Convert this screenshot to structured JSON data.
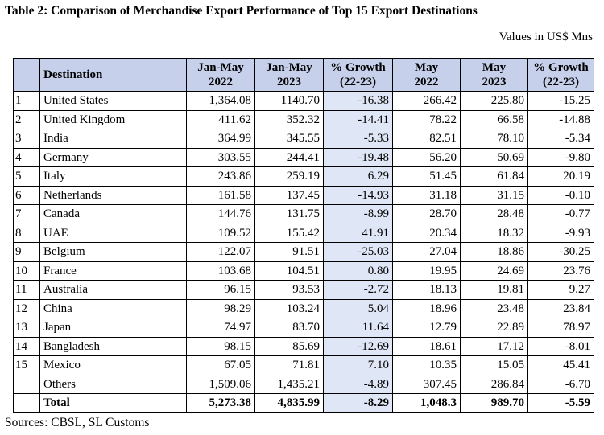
{
  "title": "Table 2: Comparison of Merchandise Export Performance of Top 15 Export Destinations",
  "units": "Values in US$ Mns",
  "headers": {
    "idx": "",
    "destination": "Destination",
    "jan_may_2022_l1": "Jan-May",
    "jan_may_2022_l2": "2022",
    "jan_may_2023_l1": "Jan-May",
    "jan_may_2023_l2": "2023",
    "growth1_l1": "% Growth",
    "growth1_l2": "(22-23)",
    "may_2022_l1": "May",
    "may_2022_l2": "2022",
    "may_2023_l1": "May",
    "may_2023_l2": "2023",
    "growth2_l1": "% Growth",
    "growth2_l2": "(22-23)"
  },
  "rows": [
    {
      "idx": "1",
      "destination": "United States",
      "jm22": "1,364.08",
      "jm23": "1140.70",
      "g1": "-16.38",
      "m22": "266.42",
      "m23": "225.80",
      "g2": "-15.25"
    },
    {
      "idx": "2",
      "destination": "United Kingdom",
      "jm22": "411.62",
      "jm23": "352.32",
      "g1": "-14.41",
      "m22": "78.22",
      "m23": "66.58",
      "g2": "-14.88"
    },
    {
      "idx": "3",
      "destination": "India",
      "jm22": "364.99",
      "jm23": "345.55",
      "g1": "-5.33",
      "m22": "82.51",
      "m23": "78.10",
      "g2": "-5.34"
    },
    {
      "idx": "4",
      "destination": "Germany",
      "jm22": "303.55",
      "jm23": "244.41",
      "g1": "-19.48",
      "m22": "56.20",
      "m23": "50.69",
      "g2": "-9.80"
    },
    {
      "idx": "5",
      "destination": "Italy",
      "jm22": "243.86",
      "jm23": "259.19",
      "g1": "6.29",
      "m22": "51.45",
      "m23": "61.84",
      "g2": "20.19"
    },
    {
      "idx": "6",
      "destination": "Netherlands",
      "jm22": "161.58",
      "jm23": "137.45",
      "g1": "-14.93",
      "m22": "31.18",
      "m23": "31.15",
      "g2": "-0.10"
    },
    {
      "idx": "7",
      "destination": "Canada",
      "jm22": "144.76",
      "jm23": "131.75",
      "g1": "-8.99",
      "m22": "28.70",
      "m23": "28.48",
      "g2": "-0.77"
    },
    {
      "idx": "8",
      "destination": "UAE",
      "jm22": "109.52",
      "jm23": "155.42",
      "g1": "41.91",
      "m22": "20.34",
      "m23": "18.32",
      "g2": "-9.93"
    },
    {
      "idx": "9",
      "destination": "Belgium",
      "jm22": "122.07",
      "jm23": "91.51",
      "g1": "-25.03",
      "m22": "27.04",
      "m23": "18.86",
      "g2": "-30.25"
    },
    {
      "idx": "10",
      "destination": "France",
      "jm22": "103.68",
      "jm23": "104.51",
      "g1": "0.80",
      "m22": "19.95",
      "m23": "24.69",
      "g2": "23.76"
    },
    {
      "idx": "11",
      "destination": "Australia",
      "jm22": "96.15",
      "jm23": "93.53",
      "g1": "-2.72",
      "m22": "18.13",
      "m23": "19.81",
      "g2": "9.27"
    },
    {
      "idx": "12",
      "destination": "China",
      "jm22": "98.29",
      "jm23": "103.24",
      "g1": "5.04",
      "m22": "18.96",
      "m23": "23.48",
      "g2": "23.84"
    },
    {
      "idx": "13",
      "destination": "Japan",
      "jm22": "74.97",
      "jm23": "83.70",
      "g1": "11.64",
      "m22": "12.79",
      "m23": "22.89",
      "g2": "78.97"
    },
    {
      "idx": "14",
      "destination": "Bangladesh",
      "jm22": "98.15",
      "jm23": "85.69",
      "g1": "-12.69",
      "m22": "18.61",
      "m23": "17.12",
      "g2": "-8.01"
    },
    {
      "idx": "15",
      "destination": "Mexico",
      "jm22": "67.05",
      "jm23": "71.81",
      "g1": "7.10",
      "m22": "10.35",
      "m23": "15.05",
      "g2": "45.41"
    },
    {
      "idx": "",
      "destination": "Others",
      "jm22": "1,509.06",
      "jm23": "1,435.21",
      "g1": "-4.89",
      "m22": "307.45",
      "m23": "286.84",
      "g2": "-6.70"
    }
  ],
  "total": {
    "idx": "",
    "destination": "Total",
    "jm22": "5,273.38",
    "jm23": "4,835.99",
    "g1": "-8.29",
    "m22": "1,048.3",
    "m23": "989.70",
    "g2": "-5.59"
  },
  "source": "Sources: CBSL, SL Customs"
}
